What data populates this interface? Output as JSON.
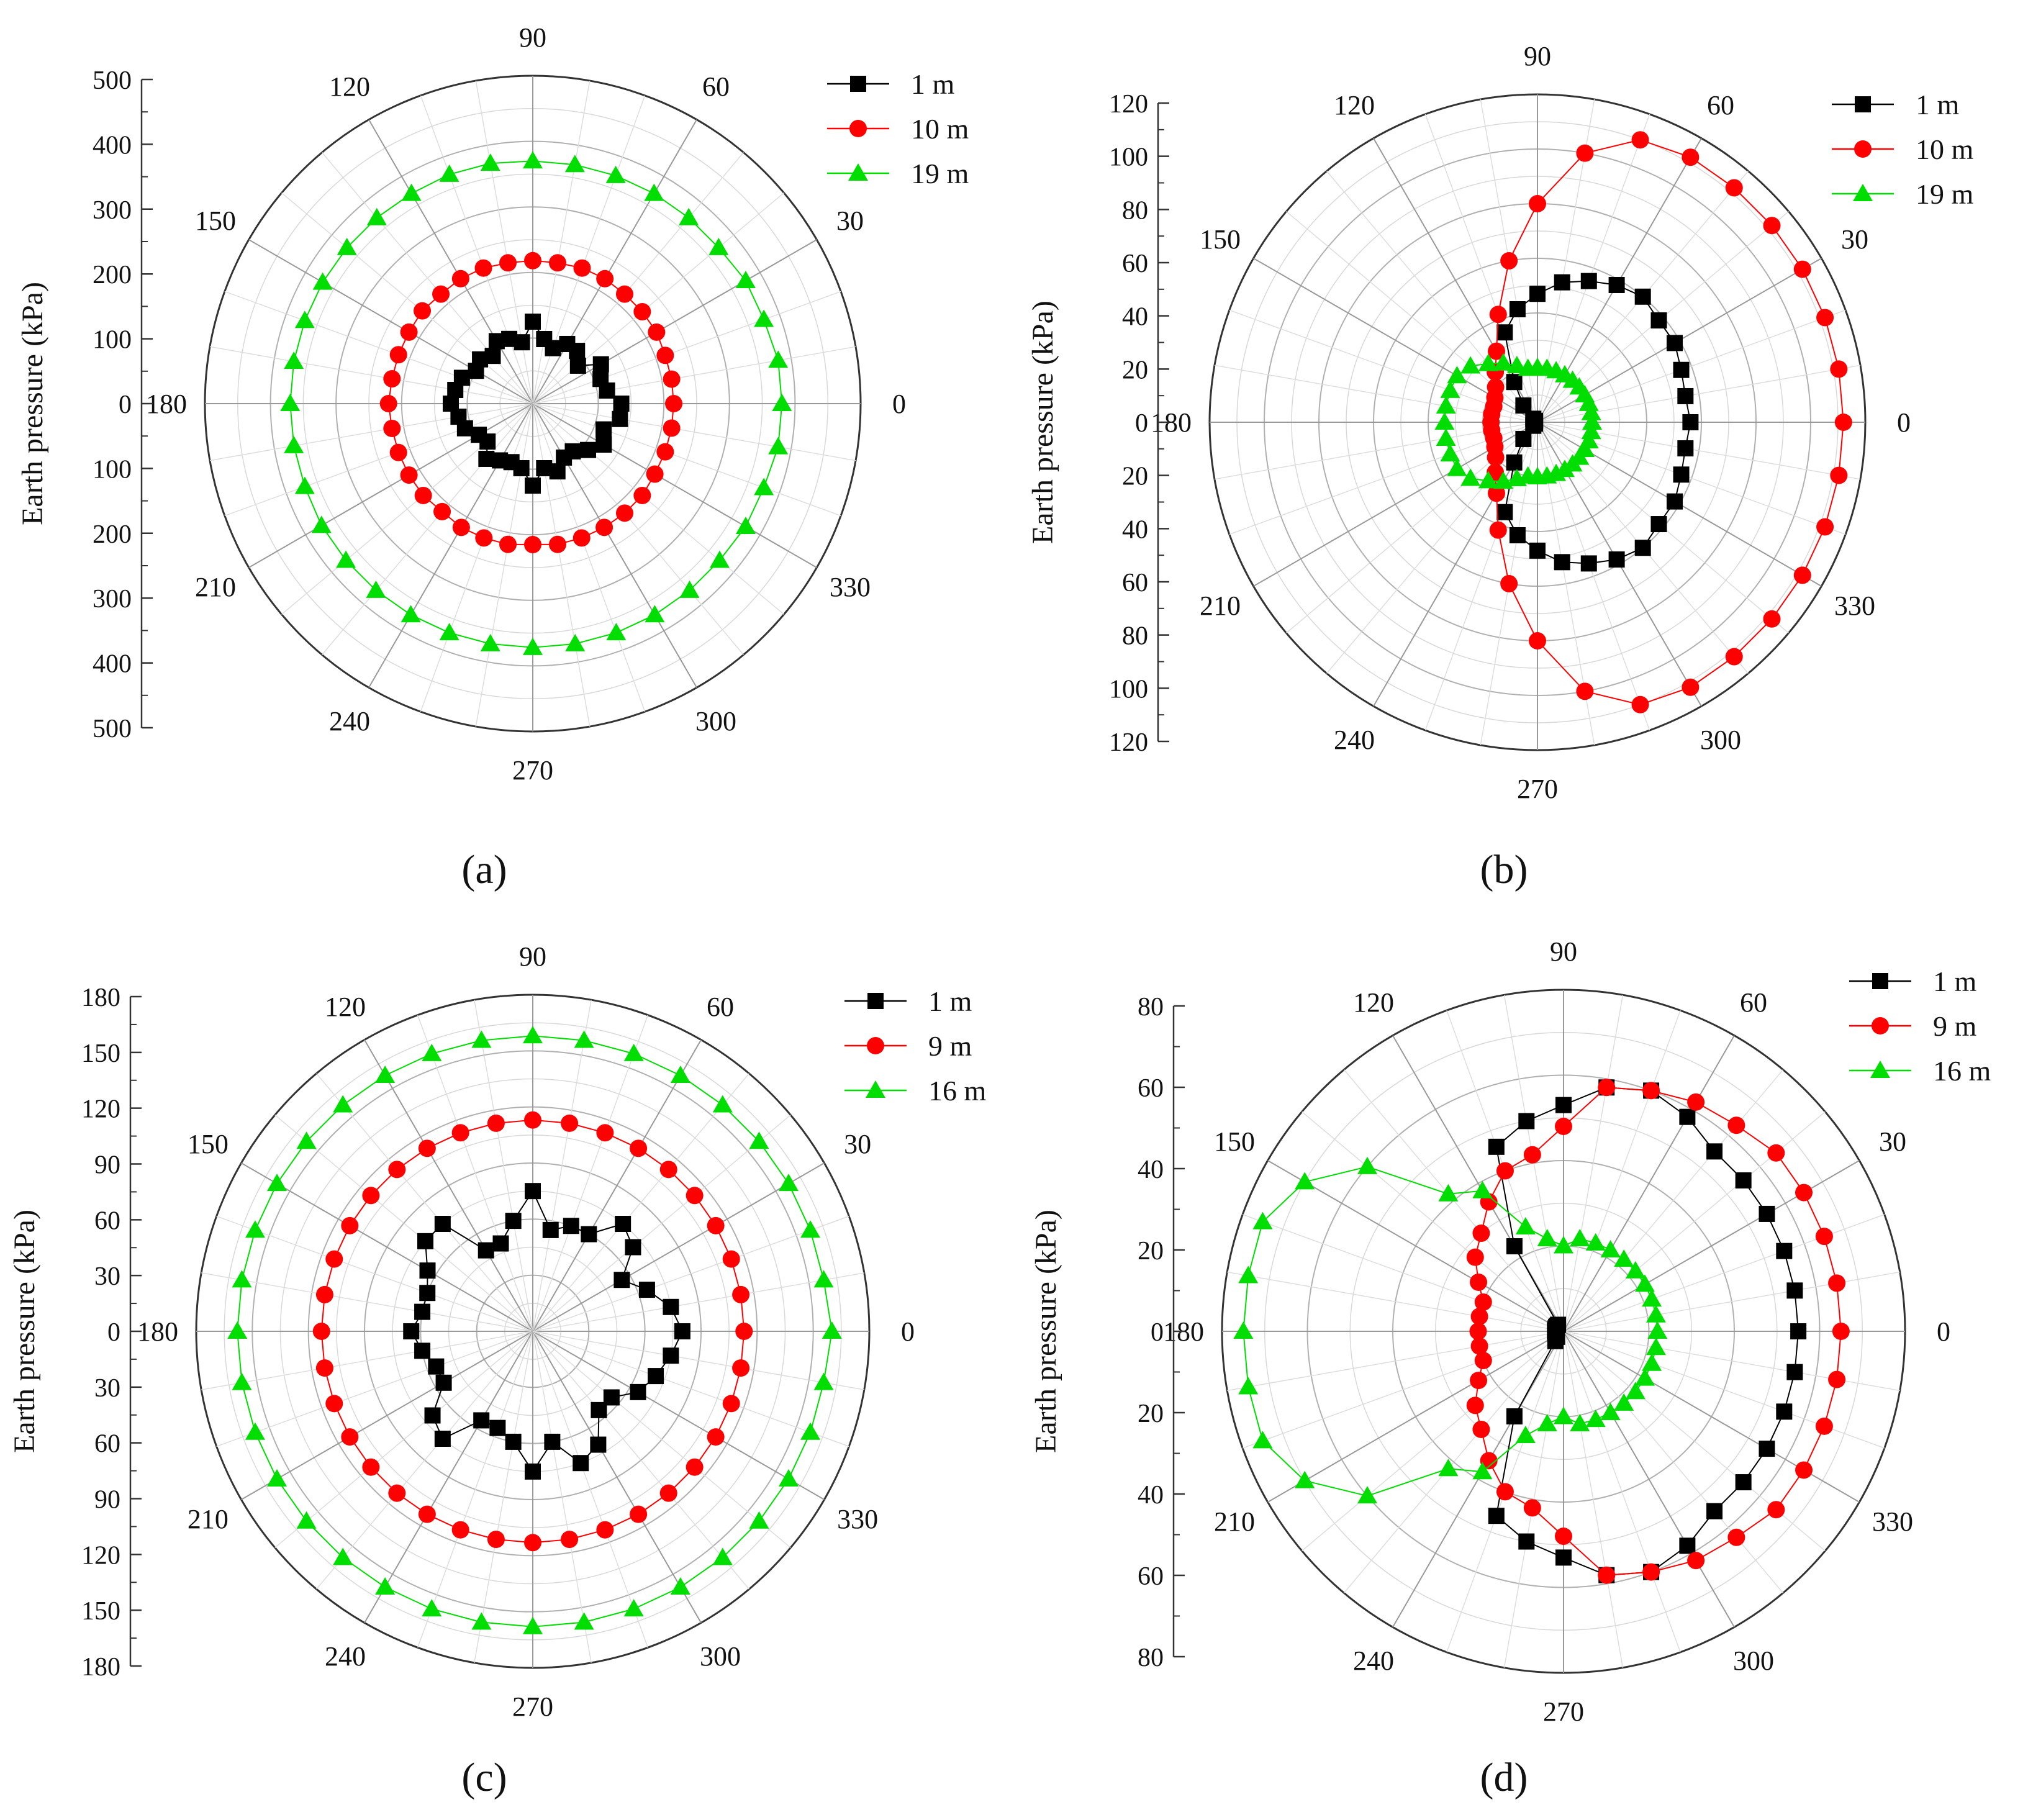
{
  "figure": {
    "colors": {
      "s1": "#000000",
      "s2": "#ff0000",
      "s3": "#00dd00",
      "grid": "#c8c8c8",
      "axis": "#333333"
    },
    "charts": [
      {
        "caption": "(a)",
        "y_title": "Earth pressure (kPa)",
        "r_max": 500,
        "r_ticks": [
          100,
          200,
          300,
          400,
          500
        ],
        "legend": [
          {
            "label": "1 m",
            "marker": "square",
            "color": "#000000"
          },
          {
            "label": "10 m",
            "marker": "circle",
            "color": "#ff0000"
          },
          {
            "label": "19 m",
            "marker": "triangle",
            "color": "#00dd00"
          }
        ]
      },
      {
        "caption": "(b)",
        "y_title": "Earth pressure (kPa)",
        "r_max": 120,
        "r_ticks": [
          20,
          40,
          60,
          80,
          100,
          120
        ],
        "legend": [
          {
            "label": "1 m",
            "marker": "square",
            "color": "#000000"
          },
          {
            "label": "10 m",
            "marker": "circle",
            "color": "#ff0000"
          },
          {
            "label": "19 m",
            "marker": "triangle",
            "color": "#00dd00"
          }
        ]
      },
      {
        "caption": "(c)",
        "y_title": "Earth pressure (kPa)",
        "r_max": 180,
        "r_ticks": [
          30,
          60,
          90,
          120,
          150,
          180
        ],
        "legend": [
          {
            "label": "1 m",
            "marker": "square",
            "color": "#000000"
          },
          {
            "label": "9 m",
            "marker": "circle",
            "color": "#ff0000"
          },
          {
            "label": "16 m",
            "marker": "triangle",
            "color": "#00dd00"
          }
        ]
      },
      {
        "caption": "(d)",
        "y_title": "Earth pressure (kPa)",
        "r_max": 80,
        "r_ticks": [
          20,
          40,
          60,
          80
        ],
        "legend": [
          {
            "label": "1 m",
            "marker": "square",
            "color": "#000000"
          },
          {
            "label": "9 m",
            "marker": "circle",
            "color": "#ff0000"
          },
          {
            "label": "16 m",
            "marker": "triangle",
            "color": "#00dd00"
          }
        ]
      }
    ]
  },
  "chart_data": [
    {
      "type": "polar-line",
      "title": "(a)",
      "ylabel": "Earth pressure (kPa)",
      "angle_labels": [
        "0",
        "30",
        "60",
        "90",
        "120",
        "150",
        "180",
        "210",
        "240",
        "270",
        "300",
        "330"
      ],
      "r_range": [
        0,
        500
      ],
      "theta": [
        0,
        10,
        20,
        30,
        40,
        50,
        60,
        70,
        80,
        90,
        100,
        110,
        120,
        130,
        140,
        150,
        160,
        170,
        180,
        190,
        200,
        210,
        220,
        230,
        240,
        250,
        260,
        270,
        280,
        290,
        300,
        310,
        320,
        330,
        340,
        350
      ],
      "series": [
        {
          "name": "1 m",
          "values": [
            135,
            115,
            110,
            120,
            90,
            105,
            105,
            90,
            100,
            125,
            95,
            105,
            110,
            95,
            105,
            100,
            115,
            120,
            125,
            115,
            110,
            95,
            90,
            110,
            100,
            95,
            100,
            125,
            100,
            110,
            95,
            95,
            110,
            125,
            115,
            135
          ]
        },
        {
          "name": "10 m",
          "values": [
            215,
            215,
            215,
            218,
            218,
            218,
            220,
            220,
            218,
            218,
            218,
            220,
            220,
            218,
            220,
            218,
            218,
            218,
            220,
            218,
            218,
            218,
            218,
            215,
            218,
            218,
            218,
            215,
            218,
            218,
            218,
            218,
            218,
            215,
            215,
            215
          ]
        },
        {
          "name": "19 m",
          "values": [
            380,
            380,
            375,
            375,
            370,
            370,
            370,
            370,
            370,
            370,
            372,
            372,
            370,
            370,
            370,
            370,
            370,
            370,
            370,
            370,
            370,
            372,
            372,
            372,
            372,
            372,
            372,
            372,
            372,
            372,
            372,
            372,
            372,
            375,
            375,
            380
          ]
        }
      ]
    },
    {
      "type": "polar-line",
      "title": "(b)",
      "ylabel": "Earth pressure (kPa)",
      "angle_labels": [
        "0",
        "30",
        "60",
        "90",
        "120",
        "150",
        "180",
        "210",
        "240",
        "270",
        "300",
        "330"
      ],
      "r_range": [
        0,
        120
      ],
      "theta": [
        0,
        10,
        20,
        30,
        40,
        50,
        60,
        70,
        80,
        90,
        100,
        110,
        120,
        130,
        140,
        150,
        160,
        170,
        180,
        190,
        200,
        210,
        220,
        230,
        240,
        250,
        260,
        270,
        280,
        290,
        300,
        310,
        320,
        330,
        340,
        350
      ],
      "series": [
        {
          "name": "1 m",
          "values": [
            56,
            55,
            56,
            58,
            58,
            60,
            58,
            55,
            52,
            47,
            42,
            35,
            17,
            8,
            2,
            1,
            1,
            1,
            1,
            1,
            1,
            1,
            2,
            8,
            17,
            35,
            42,
            47,
            52,
            55,
            58,
            60,
            58,
            58,
            56,
            55
          ]
        },
        {
          "name": "10 m",
          "values": [
            112,
            112,
            112,
            112,
            112,
            112,
            112,
            110,
            100,
            80,
            60,
            42,
            30,
            24,
            20,
            18,
            17,
            17,
            17,
            17,
            17,
            18,
            20,
            24,
            30,
            42,
            60,
            80,
            100,
            110,
            112,
            112,
            112,
            112,
            112,
            112
          ]
        },
        {
          "name": "19 m",
          "values": [
            20,
            20,
            20,
            20,
            20,
            20,
            20,
            20,
            20,
            20,
            20,
            22,
            25,
            28,
            32,
            34,
            34,
            34,
            34,
            34,
            34,
            34,
            32,
            28,
            25,
            22,
            20,
            20,
            20,
            20,
            20,
            20,
            20,
            20,
            20,
            20
          ]
        }
      ]
    },
    {
      "type": "polar-line",
      "title": "(c)",
      "ylabel": "Earth pressure (kPa)",
      "angle_labels": [
        "0",
        "30",
        "60",
        "90",
        "120",
        "150",
        "180",
        "210",
        "240",
        "270",
        "300",
        "330"
      ],
      "r_range": [
        0,
        180
      ],
      "theta": [
        0,
        10,
        20,
        30,
        40,
        50,
        60,
        70,
        80,
        90,
        100,
        110,
        120,
        130,
        140,
        150,
        160,
        170,
        180,
        190,
        200,
        210,
        220,
        230,
        240,
        250,
        260,
        270,
        280,
        290,
        300,
        310,
        320,
        330,
        340,
        350
      ],
      "series": [
        {
          "name": "1 m",
          "values": [
            80,
            75,
            65,
            55,
            70,
            75,
            60,
            60,
            55,
            75,
            60,
            50,
            50,
            75,
            75,
            65,
            60,
            60,
            65,
            60,
            55,
            55,
            70,
            75,
            55,
            55,
            60,
            75,
            60,
            75,
            70,
            55,
            55,
            65,
            70,
            75
          ]
        },
        {
          "name": "9 m",
          "values": [
            113,
            113,
            113,
            113,
            113,
            113,
            113,
            113,
            113,
            113,
            113,
            113,
            113,
            113,
            113,
            113,
            113,
            113,
            113,
            113,
            113,
            113,
            113,
            113,
            113,
            113,
            113,
            113,
            113,
            113,
            113,
            113,
            113,
            113,
            113,
            113
          ]
        },
        {
          "name": "16 m",
          "values": [
            160,
            158,
            158,
            158,
            158,
            158,
            158,
            158,
            158,
            158,
            158,
            158,
            158,
            158,
            158,
            158,
            158,
            158,
            158,
            158,
            158,
            158,
            158,
            158,
            158,
            158,
            158,
            158,
            158,
            158,
            158,
            158,
            158,
            158,
            158,
            158
          ]
        }
      ]
    },
    {
      "type": "polar-line",
      "title": "(d)",
      "ylabel": "Earth pressure (kPa)",
      "angle_labels": [
        "0",
        "30",
        "60",
        "90",
        "120",
        "150",
        "180",
        "210",
        "240",
        "270",
        "300",
        "330"
      ],
      "r_range": [
        0,
        80
      ],
      "theta": [
        0,
        10,
        20,
        30,
        40,
        50,
        60,
        70,
        80,
        90,
        100,
        110,
        120,
        130,
        140,
        150,
        160,
        170,
        180,
        190,
        200,
        210,
        220,
        230,
        240,
        250,
        260,
        270,
        280,
        290,
        300,
        310,
        320,
        330,
        340,
        350
      ],
      "series": [
        {
          "name": "1 m",
          "values": [
            55,
            55,
            55,
            55,
            55,
            55,
            58,
            60,
            58,
            53,
            50,
            46,
            23,
            2,
            2,
            2,
            2,
            2,
            2,
            2,
            2,
            2,
            2,
            3,
            23,
            46,
            50,
            53,
            58,
            60,
            58,
            55,
            55,
            55,
            55,
            55
          ]
        },
        {
          "name": "9 m",
          "values": [
            65,
            65,
            65,
            65,
            65,
            63,
            62,
            60,
            58,
            48,
            42,
            40,
            35,
            30,
            27,
            23,
            20,
            20,
            20,
            20,
            20,
            23,
            27,
            30,
            35,
            40,
            42,
            48,
            58,
            60,
            62,
            63,
            65,
            65,
            65,
            65
          ]
        },
        {
          "name": "16 m",
          "values": [
            22,
            22,
            22,
            22,
            22,
            22,
            22,
            22,
            22,
            20,
            22,
            26,
            38,
            42,
            60,
            70,
            75,
            75,
            75,
            75,
            75,
            70,
            60,
            42,
            38,
            26,
            22,
            20,
            22,
            22,
            22,
            22,
            22,
            22,
            22,
            22
          ]
        }
      ]
    }
  ]
}
